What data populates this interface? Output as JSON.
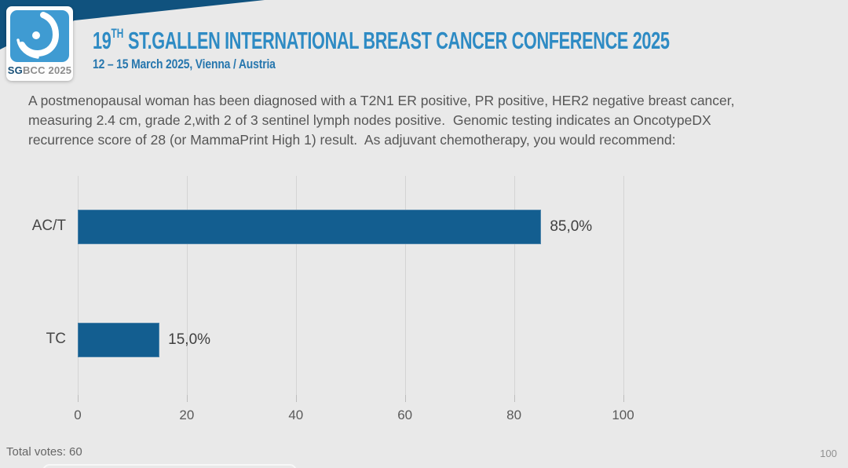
{
  "slide": {
    "background_color": "#e9e9e9",
    "page_number": "100"
  },
  "header": {
    "band_color": "#10527e",
    "logo": {
      "sg_label": "SG",
      "rest_label": "BCC 2025",
      "square_color": "#3f9bd2"
    },
    "title_number": "19",
    "title_sup": "TH",
    "title_rest": " ST.GALLEN INTERNATIONAL BREAST CANCER CONFERENCE 2025",
    "subtitle": "12 – 15 March 2025, Vienna / Austria",
    "title_color": "#2e8bc4"
  },
  "question": {
    "text": "A postmenopausal woman has been diagnosed with a T2N1 ER positive, PR positive, HER2 negative breast cancer, measuring 2.4 cm, grade 2,with 2 of 3 sentinel lymph nodes positive.  Genomic testing indicates an OncotypeDX recurrence score of 28 (or MammaPrint High 1) result.  As adjuvant chemotherapy, you would recommend:"
  },
  "chart_data": {
    "type": "bar",
    "orientation": "horizontal",
    "title": "",
    "categories": [
      "AC/T",
      "TC"
    ],
    "values": [
      85.0,
      15.0
    ],
    "value_labels": [
      "85,0%",
      "15,0%"
    ],
    "x_ticks": [
      0,
      20,
      40,
      60,
      80,
      100
    ],
    "xlim": [
      0,
      100
    ],
    "bar_color": "#135e90",
    "grid": true,
    "legend": "none"
  },
  "footer": {
    "total_votes": "Total votes: 60"
  }
}
